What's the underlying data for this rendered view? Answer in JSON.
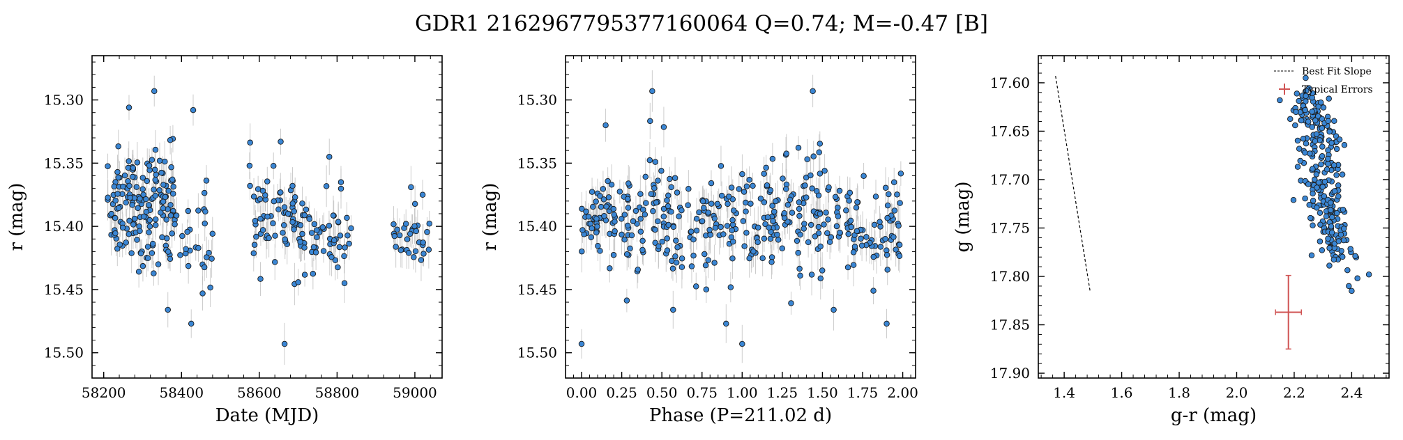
{
  "figure": {
    "title": "GDR1 2162967795377160064  Q=0.74; M=-0.47 [B]"
  },
  "chart_data": [
    {
      "type": "scatter",
      "xlabel": "Date (MJD)",
      "ylabel": "r (mag)",
      "xlim": [
        58170,
        59070
      ],
      "ylim": [
        15.52,
        15.265
      ],
      "y_inverted": true,
      "x_ticks": [
        58200,
        58400,
        58600,
        58800,
        59000
      ],
      "x_tick_labels": [
        "58200",
        "58400",
        "58600",
        "58800",
        "59000"
      ],
      "y_ticks": [
        15.3,
        15.35,
        15.4,
        15.45,
        15.5
      ],
      "y_tick_labels": [
        "15.30",
        "15.35",
        "15.40",
        "15.45",
        "15.50"
      ],
      "marker_color": "#3a86d4",
      "errorbar_color": "#c0c0c0",
      "typical_error": 0.013,
      "groups": [
        {
          "name": "",
          "x_range": [
            58210,
            58290
          ],
          "y_center": 15.385,
          "y_spread": 0.025,
          "n": 70
        },
        {
          "name": "",
          "x_range": [
            58290,
            58380
          ],
          "y_center": 15.385,
          "y_spread": 0.03,
          "n": 90
        },
        {
          "name": "",
          "x_range": [
            58380,
            58480
          ],
          "y_center": 15.41,
          "y_spread": 0.025,
          "n": 28
        },
        {
          "name": "",
          "x_range": [
            58575,
            58700
          ],
          "y_center": 15.395,
          "y_spread": 0.022,
          "n": 60
        },
        {
          "name": "",
          "x_range": [
            58700,
            58840
          ],
          "y_center": 15.405,
          "y_spread": 0.018,
          "n": 55
        },
        {
          "name": "",
          "x_range": [
            58940,
            59040
          ],
          "y_center": 15.41,
          "y_spread": 0.012,
          "n": 30
        }
      ],
      "highlights": [
        {
          "x": 58330,
          "y": 15.293
        },
        {
          "x": 58265,
          "y": 15.306
        },
        {
          "x": 58430,
          "y": 15.308
        },
        {
          "x": 58425,
          "y": 15.477
        },
        {
          "x": 58365,
          "y": 15.466
        },
        {
          "x": 58665,
          "y": 15.493
        },
        {
          "x": 58575,
          "y": 15.352
        },
        {
          "x": 58655,
          "y": 15.333
        },
        {
          "x": 58780,
          "y": 15.345
        },
        {
          "x": 58810,
          "y": 15.365
        },
        {
          "x": 58990,
          "y": 15.369
        },
        {
          "x": 59020,
          "y": 15.375
        }
      ]
    },
    {
      "type": "scatter",
      "xlabel": "Phase (P=211.02 d)",
      "ylabel": "r (mag)",
      "xlim": [
        -0.1,
        2.08
      ],
      "ylim": [
        15.52,
        15.265
      ],
      "y_inverted": true,
      "x_ticks": [
        0.0,
        0.25,
        0.5,
        0.75,
        1.0,
        1.25,
        1.5,
        1.75,
        2.0
      ],
      "x_tick_labels": [
        "0.00",
        "0.25",
        "0.50",
        "0.75",
        "1.00",
        "1.25",
        "1.50",
        "1.75",
        "2.00"
      ],
      "y_ticks": [
        15.3,
        15.35,
        15.4,
        15.45,
        15.5
      ],
      "y_tick_labels": [
        "15.30",
        "15.35",
        "15.40",
        "15.45",
        "15.50"
      ],
      "marker_color": "#3a86d4",
      "errorbar_color": "#c0c0c0",
      "typical_error": 0.013,
      "groups": [
        {
          "name": "",
          "x_range": [
            0.0,
            0.25
          ],
          "y_center": 15.395,
          "y_spread": 0.025,
          "n": 55
        },
        {
          "name": "",
          "x_range": [
            0.25,
            0.55
          ],
          "y_center": 15.385,
          "y_spread": 0.03,
          "n": 70
        },
        {
          "name": "",
          "x_range": [
            0.55,
            0.99
          ],
          "y_center": 15.4,
          "y_spread": 0.025,
          "n": 80
        },
        {
          "name": "",
          "x_range": [
            1.0,
            1.25
          ],
          "y_center": 15.395,
          "y_spread": 0.025,
          "n": 55
        },
        {
          "name": "",
          "x_range": [
            1.25,
            1.55
          ],
          "y_center": 15.385,
          "y_spread": 0.03,
          "n": 70
        },
        {
          "name": "",
          "x_range": [
            1.55,
            1.99
          ],
          "y_center": 15.4,
          "y_spread": 0.025,
          "n": 80
        }
      ],
      "highlights": [
        {
          "x": 0.0,
          "y": 15.493
        },
        {
          "x": 1.0,
          "y": 15.493
        },
        {
          "x": 0.44,
          "y": 15.293
        },
        {
          "x": 1.44,
          "y": 15.293
        },
        {
          "x": 0.9,
          "y": 15.477
        },
        {
          "x": 1.9,
          "y": 15.477
        },
        {
          "x": 0.57,
          "y": 15.466
        },
        {
          "x": 1.57,
          "y": 15.466
        },
        {
          "x": 0.15,
          "y": 15.32
        }
      ]
    },
    {
      "type": "scatter",
      "xlabel": "g-r (mag)",
      "ylabel": "g (mag)",
      "xlim": [
        1.31,
        2.53
      ],
      "ylim": [
        17.905,
        17.572
      ],
      "y_inverted": true,
      "x_ticks": [
        1.4,
        1.6,
        1.8,
        2.0,
        2.2,
        2.4
      ],
      "x_tick_labels": [
        "1.4",
        "1.6",
        "1.8",
        "2.0",
        "2.2",
        "2.4"
      ],
      "y_ticks": [
        17.6,
        17.65,
        17.7,
        17.75,
        17.8,
        17.85,
        17.9
      ],
      "y_tick_labels": [
        "17.60",
        "17.65",
        "17.70",
        "17.75",
        "17.80",
        "17.85",
        "17.90"
      ],
      "marker_color": "#3a86d4",
      "cmd_trend": {
        "x_top": 2.22,
        "y_top": 17.61,
        "x_bottom": 2.37,
        "y_bottom": 17.78,
        "x_scatter": 0.035,
        "n": 260
      },
      "highlights": [
        {
          "x": 2.46,
          "y": 17.798
        },
        {
          "x": 2.42,
          "y": 17.802
        },
        {
          "x": 2.39,
          "y": 17.81
        },
        {
          "x": 2.24,
          "y": 17.595
        },
        {
          "x": 2.15,
          "y": 17.618
        },
        {
          "x": 2.4,
          "y": 17.815
        }
      ],
      "best_fit_line": {
        "x1": 1.37,
        "y1": 17.593,
        "x2": 1.49,
        "y2": 17.815,
        "color": "#000000"
      },
      "typical_error": {
        "x": 2.18,
        "y": 17.837,
        "xerr": 0.045,
        "yerr": 0.038,
        "color": "#d05454"
      },
      "legend": {
        "position": "upper-right",
        "entries": [
          {
            "label": "Best Fit Slope",
            "style": "dashed-line"
          },
          {
            "label": "Typical Errors",
            "style": "errorbar"
          }
        ]
      }
    }
  ]
}
